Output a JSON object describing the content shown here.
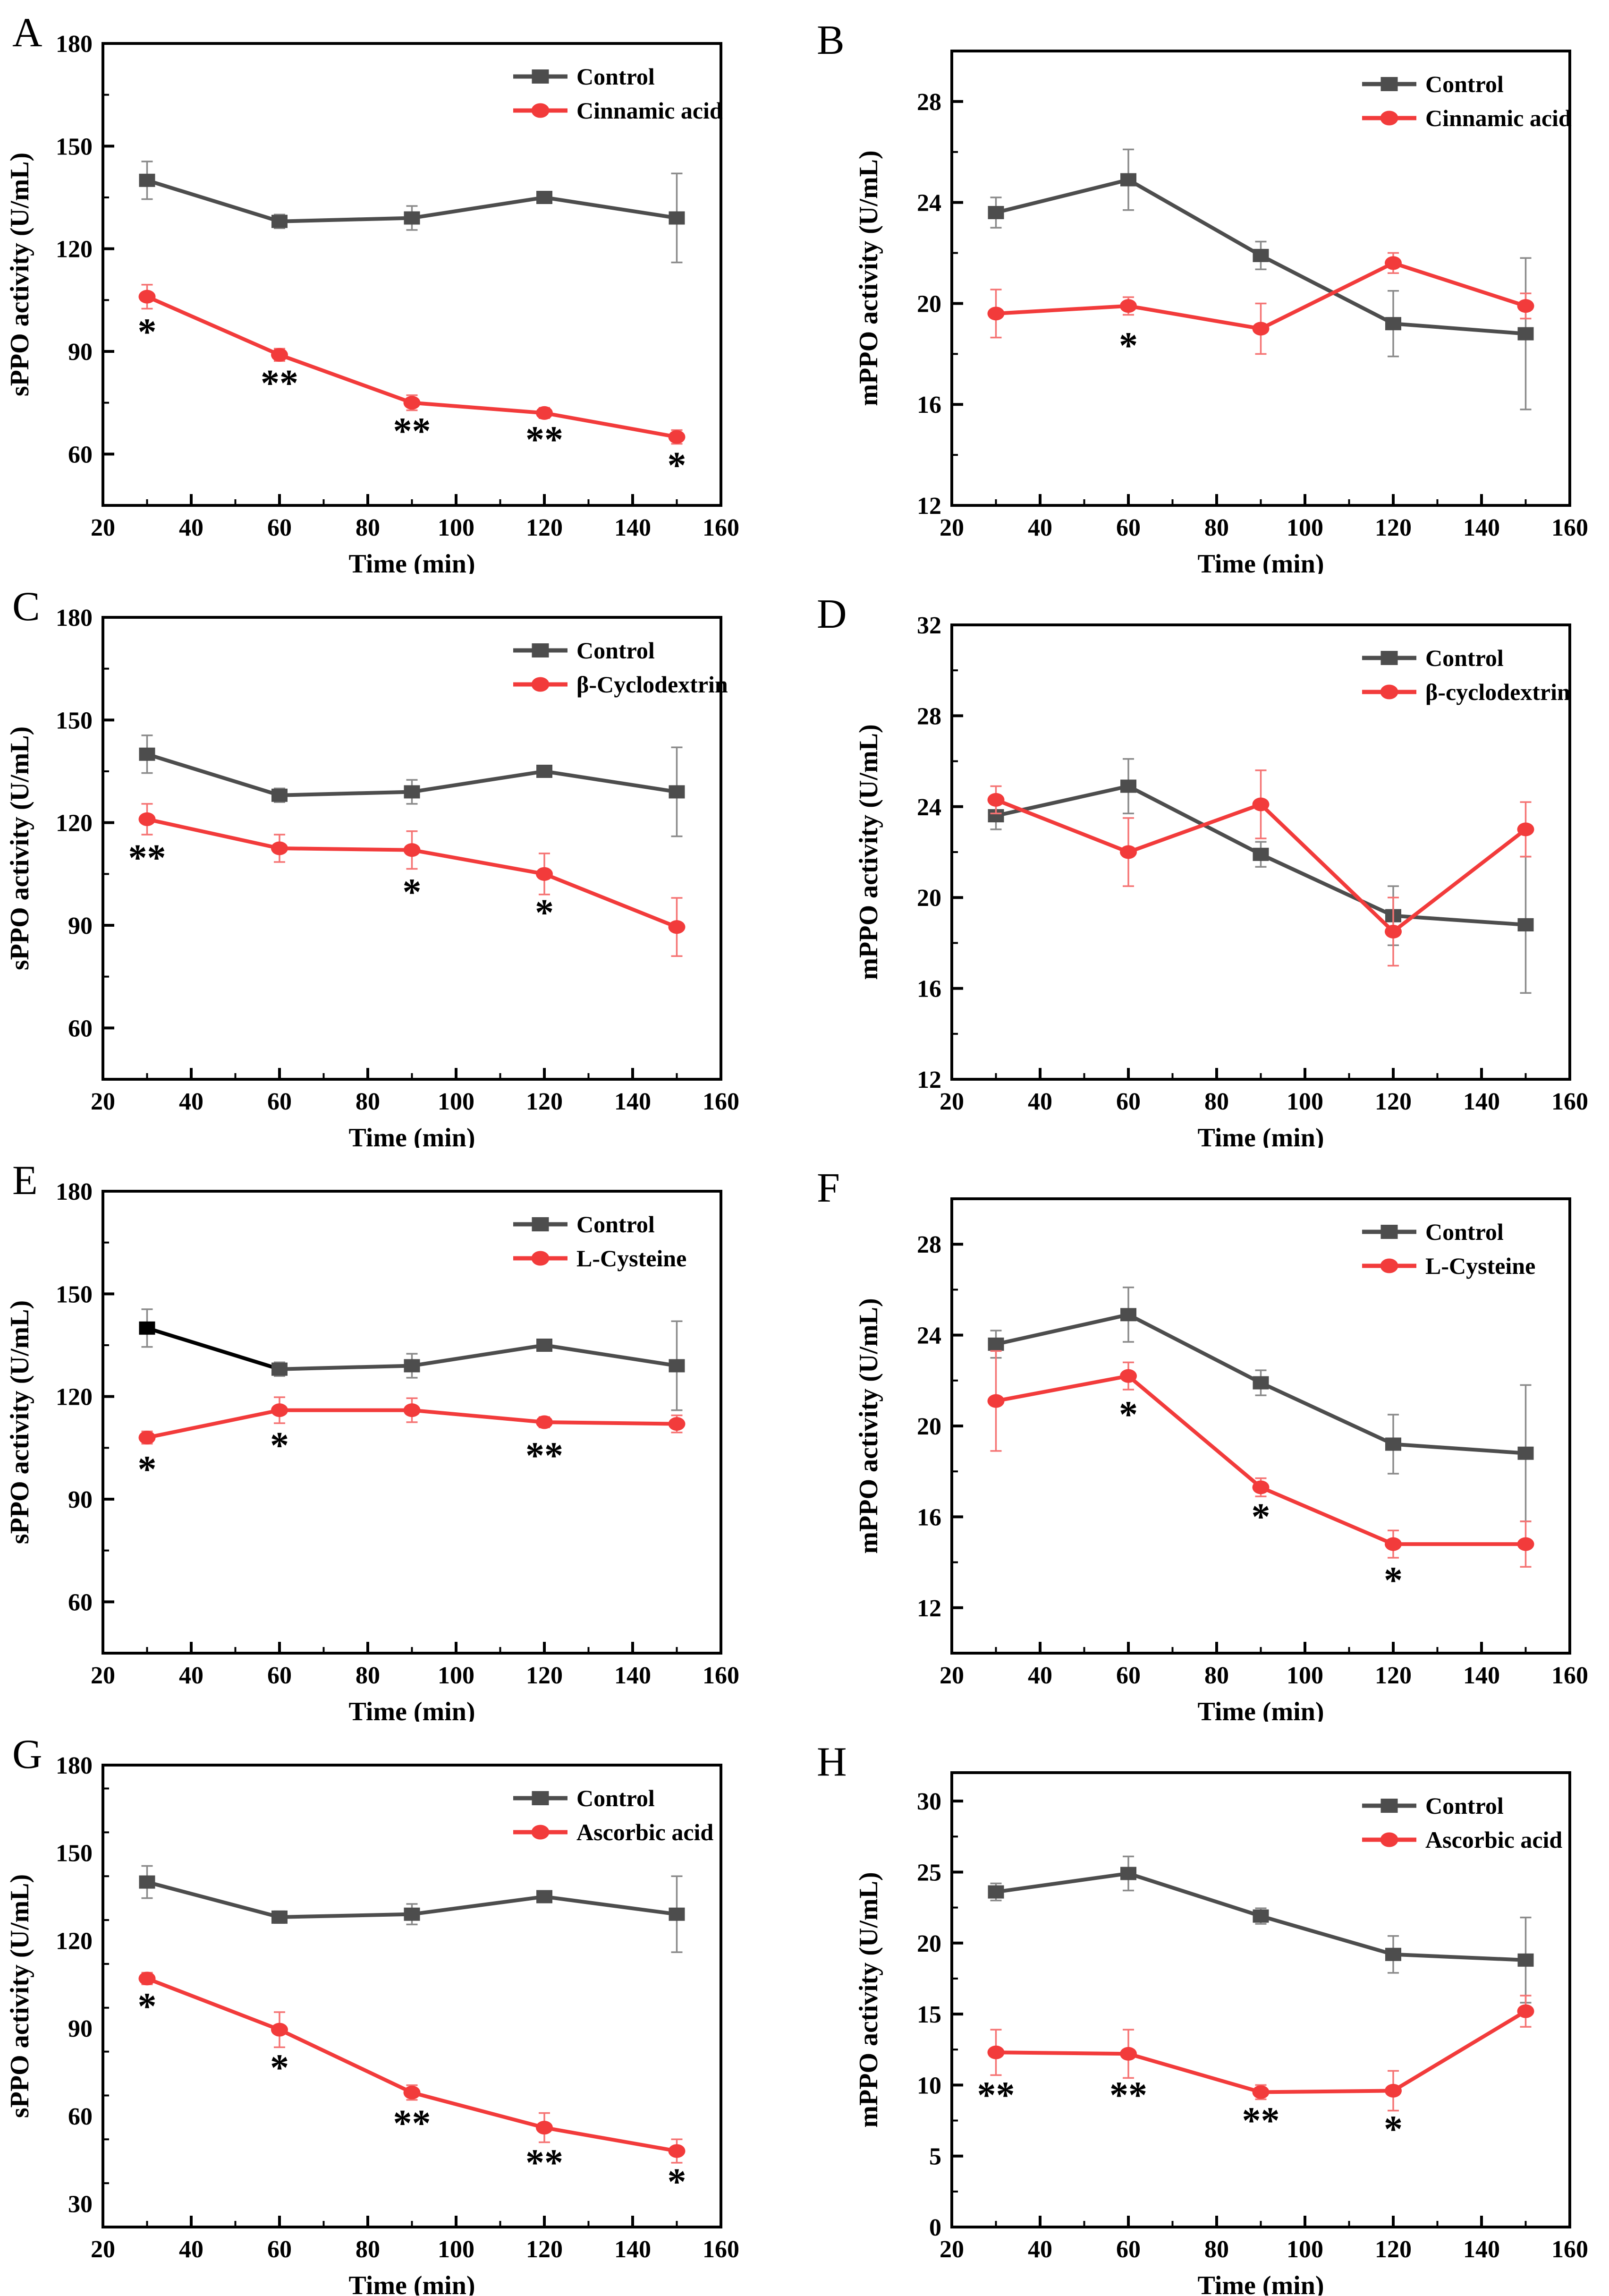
{
  "figure": {
    "background": "#ffffff",
    "text_color": "#000000",
    "accent_red": "#f23b3b",
    "accent_gray": "#4d4d4d",
    "panel_letters": [
      "A",
      "B",
      "C",
      "D",
      "E",
      "F",
      "G",
      "H"
    ]
  },
  "chart_data": [
    {
      "panel": "A",
      "type": "line",
      "title": "",
      "xlabel": "Time (min)",
      "ylabel": "sPPO activity (U/mL)",
      "xlim": [
        20,
        160
      ],
      "xticks": [
        20,
        40,
        60,
        80,
        100,
        120,
        140,
        160
      ],
      "x_minor_step": 10,
      "ylim": [
        45,
        180
      ],
      "yticks": [
        60,
        90,
        120,
        150,
        180
      ],
      "y_minor_step": 15,
      "x": [
        30,
        60,
        90,
        120,
        150
      ],
      "legend_position": "top-right",
      "series": [
        {
          "name": "Control",
          "marker": "square",
          "color": "#4d4d4d",
          "error_color": "#8a8a8a",
          "values": [
            140,
            128,
            129,
            135,
            129
          ],
          "errors": [
            5.5,
            2,
            3.5,
            1.5,
            13
          ]
        },
        {
          "name": "Cinnamic acid",
          "marker": "circle",
          "color": "#f23b3b",
          "error_color": "#f57373",
          "values": [
            106,
            89,
            75,
            72,
            65
          ],
          "errors": [
            3.5,
            1.8,
            2.2,
            1.5,
            2
          ]
        }
      ],
      "significance": [
        {
          "x": 30,
          "y": 97,
          "label": "*"
        },
        {
          "x": 60,
          "y": 82,
          "label": "**"
        },
        {
          "x": 90,
          "y": 68,
          "label": "**"
        },
        {
          "x": 120,
          "y": 65.5,
          "label": "**"
        },
        {
          "x": 150,
          "y": 58,
          "label": "*"
        }
      ]
    },
    {
      "panel": "B",
      "type": "line",
      "title": "",
      "xlabel": "Time (min)",
      "ylabel": "mPPO activity (U/mL)",
      "xlim": [
        20,
        160
      ],
      "xticks": [
        20,
        40,
        60,
        80,
        100,
        120,
        140,
        160
      ],
      "x_minor_step": 10,
      "ylim": [
        12,
        30
      ],
      "yticks": [
        12,
        16,
        20,
        24,
        28
      ],
      "y_minor_step": 2,
      "x": [
        30,
        60,
        90,
        120,
        150
      ],
      "legend_position": "top-right",
      "series": [
        {
          "name": "Control",
          "marker": "square",
          "color": "#4d4d4d",
          "error_color": "#8a8a8a",
          "values": [
            23.6,
            24.9,
            21.9,
            19.2,
            18.8
          ],
          "errors": [
            0.6,
            1.2,
            0.55,
            1.3,
            3
          ]
        },
        {
          "name": "Cinnamic acid",
          "marker": "circle",
          "color": "#f23b3b",
          "error_color": "#f57373",
          "values": [
            19.6,
            19.9,
            19.0,
            21.6,
            19.9
          ],
          "errors": [
            0.95,
            0.35,
            1.0,
            0.4,
            0.5
          ]
        }
      ],
      "significance": [
        {
          "x": 60,
          "y": 18.5,
          "label": "*"
        }
      ]
    },
    {
      "panel": "C",
      "type": "line",
      "title": "",
      "xlabel": "Time (min)",
      "ylabel": "sPPO activity (U/mL)",
      "xlim": [
        20,
        160
      ],
      "xticks": [
        20,
        40,
        60,
        80,
        100,
        120,
        140,
        160
      ],
      "x_minor_step": 10,
      "ylim": [
        45,
        180
      ],
      "yticks": [
        60,
        90,
        120,
        150,
        180
      ],
      "y_minor_step": 15,
      "x": [
        30,
        60,
        90,
        120,
        150
      ],
      "legend_position": "top-right",
      "series": [
        {
          "name": "Control",
          "marker": "square",
          "color": "#4d4d4d",
          "error_color": "#8a8a8a",
          "values": [
            140,
            128,
            129,
            135,
            129
          ],
          "errors": [
            5.5,
            2,
            3.5,
            1.5,
            13
          ]
        },
        {
          "name": "β-Cyclodextrin",
          "marker": "circle",
          "color": "#f23b3b",
          "error_color": "#f57373",
          "values": [
            121,
            112.5,
            112,
            105,
            89.5
          ],
          "errors": [
            4.5,
            4,
            5.5,
            6,
            8.5
          ]
        }
      ],
      "significance": [
        {
          "x": 30,
          "y": 111,
          "label": "**"
        },
        {
          "x": 90,
          "y": 101,
          "label": "*"
        },
        {
          "x": 120,
          "y": 95,
          "label": "*"
        }
      ]
    },
    {
      "panel": "D",
      "type": "line",
      "title": "",
      "xlabel": "Time (min)",
      "ylabel": "mPPO activity (U/mL)",
      "xlim": [
        20,
        160
      ],
      "xticks": [
        20,
        40,
        60,
        80,
        100,
        120,
        140,
        160
      ],
      "x_minor_step": 10,
      "ylim": [
        12,
        32
      ],
      "yticks": [
        12,
        16,
        20,
        24,
        28,
        32
      ],
      "y_minor_step": 2,
      "x": [
        30,
        60,
        90,
        120,
        150
      ],
      "legend_position": "top-right",
      "series": [
        {
          "name": "Control",
          "marker": "square",
          "color": "#4d4d4d",
          "error_color": "#8a8a8a",
          "values": [
            23.6,
            24.9,
            21.9,
            19.2,
            18.8
          ],
          "errors": [
            0.6,
            1.2,
            0.55,
            1.3,
            3
          ]
        },
        {
          "name": "β-cyclodextrin",
          "marker": "circle",
          "color": "#f23b3b",
          "error_color": "#f57373",
          "values": [
            24.3,
            22.0,
            24.1,
            18.5,
            23.0
          ],
          "errors": [
            0.6,
            1.5,
            1.5,
            1.5,
            1.2
          ]
        }
      ],
      "significance": []
    },
    {
      "panel": "E",
      "type": "line",
      "title": "",
      "xlabel": "Time (min)",
      "ylabel": "sPPO activity (U/mL)",
      "xlim": [
        20,
        160
      ],
      "xticks": [
        20,
        40,
        60,
        80,
        100,
        120,
        140,
        160
      ],
      "x_minor_step": 10,
      "ylim": [
        45,
        180
      ],
      "yticks": [
        60,
        90,
        120,
        150,
        180
      ],
      "y_minor_step": 15,
      "x": [
        30,
        60,
        90,
        120,
        150
      ],
      "legend_position": "top-right",
      "series": [
        {
          "name": "Control",
          "marker": "square",
          "color": "#4d4d4d",
          "error_color": "#8a8a8a",
          "first_segment_color": "#000000",
          "first_marker_color": "#000000",
          "values": [
            140,
            128,
            129,
            135,
            129
          ],
          "errors": [
            5.5,
            2,
            3.5,
            1.5,
            13
          ]
        },
        {
          "name": "L-Cysteine",
          "marker": "circle",
          "color": "#f23b3b",
          "error_color": "#f57373",
          "values": [
            108,
            116,
            116,
            112.5,
            112
          ],
          "errors": [
            1.8,
            3.8,
            3.5,
            1.5,
            2.5
          ]
        }
      ],
      "significance": [
        {
          "x": 30,
          "y": 100,
          "label": "*"
        },
        {
          "x": 60,
          "y": 107,
          "label": "*"
        },
        {
          "x": 120,
          "y": 104,
          "label": "**"
        }
      ]
    },
    {
      "panel": "F",
      "type": "line",
      "title": "",
      "xlabel": "Time (min)",
      "ylabel": "mPPO activity (U/mL)",
      "xlim": [
        20,
        160
      ],
      "xticks": [
        20,
        40,
        60,
        80,
        100,
        120,
        140,
        160
      ],
      "x_minor_step": 10,
      "ylim": [
        10,
        30
      ],
      "yticks": [
        12,
        16,
        20,
        24,
        28
      ],
      "y_minor_step": 2,
      "x": [
        30,
        60,
        90,
        120,
        150
      ],
      "legend_position": "top-right",
      "series": [
        {
          "name": "Control",
          "marker": "square",
          "color": "#4d4d4d",
          "error_color": "#8a8a8a",
          "values": [
            23.6,
            24.9,
            21.9,
            19.2,
            18.8
          ],
          "errors": [
            0.6,
            1.2,
            0.55,
            1.3,
            3
          ]
        },
        {
          "name": "L-Cysteine",
          "marker": "circle",
          "color": "#f23b3b",
          "error_color": "#f57373",
          "values": [
            21.1,
            22.2,
            17.3,
            14.8,
            14.8
          ],
          "errors": [
            2.2,
            0.6,
            0.4,
            0.6,
            1.0
          ]
        }
      ],
      "significance": [
        {
          "x": 60,
          "y": 20.7,
          "label": "*"
        },
        {
          "x": 90,
          "y": 16.2,
          "label": "*"
        },
        {
          "x": 120,
          "y": 13.4,
          "label": "*"
        }
      ]
    },
    {
      "panel": "G",
      "type": "line",
      "title": "",
      "xlabel": "Time (min)",
      "ylabel": "sPPO activity (U/mL)",
      "xlim": [
        20,
        160
      ],
      "xticks": [
        20,
        40,
        60,
        80,
        100,
        120,
        140,
        160
      ],
      "x_minor_step": 10,
      "ylim": [
        22,
        180
      ],
      "yticks": [
        30,
        60,
        90,
        120,
        150,
        180
      ],
      "y_minor_step": 15,
      "x": [
        30,
        60,
        90,
        120,
        150
      ],
      "legend_position": "top-right",
      "series": [
        {
          "name": "Control",
          "marker": "square",
          "color": "#4d4d4d",
          "error_color": "#8a8a8a",
          "values": [
            140,
            128,
            129,
            135,
            129
          ],
          "errors": [
            5.5,
            2,
            3.5,
            1.5,
            13
          ]
        },
        {
          "name": "Ascorbic acid",
          "marker": "circle",
          "color": "#f23b3b",
          "error_color": "#f57373",
          "values": [
            107,
            89.5,
            68,
            56,
            48
          ],
          "errors": [
            2,
            6,
            2.5,
            5,
            4
          ]
        }
      ],
      "significance": [
        {
          "x": 30,
          "y": 99,
          "label": "*"
        },
        {
          "x": 60,
          "y": 78,
          "label": "*"
        },
        {
          "x": 90,
          "y": 59,
          "label": "**"
        },
        {
          "x": 120,
          "y": 45.5,
          "label": "**"
        },
        {
          "x": 150,
          "y": 39,
          "label": "*"
        }
      ]
    },
    {
      "panel": "H",
      "type": "line",
      "title": "",
      "xlabel": "Time (min)",
      "ylabel": "mPPO activity (U/mL)",
      "xlim": [
        20,
        160
      ],
      "xticks": [
        20,
        40,
        60,
        80,
        100,
        120,
        140,
        160
      ],
      "x_minor_step": 10,
      "ylim": [
        0,
        32
      ],
      "yticks": [
        0,
        5,
        10,
        15,
        20,
        25,
        30
      ],
      "y_minor_step": 2.5,
      "x": [
        30,
        60,
        90,
        120,
        150
      ],
      "legend_position": "top-right",
      "series": [
        {
          "name": "Control",
          "marker": "square",
          "color": "#4d4d4d",
          "error_color": "#8a8a8a",
          "values": [
            23.6,
            24.9,
            21.9,
            19.2,
            18.8
          ],
          "errors": [
            0.6,
            1.2,
            0.55,
            1.3,
            3
          ]
        },
        {
          "name": "Ascorbic acid",
          "marker": "circle",
          "color": "#f23b3b",
          "error_color": "#f57373",
          "values": [
            12.3,
            12.2,
            9.5,
            9.6,
            15.2
          ],
          "errors": [
            1.6,
            1.7,
            0.5,
            1.4,
            1.1
          ]
        }
      ],
      "significance": [
        {
          "x": 30,
          "y": 9.6,
          "label": "**"
        },
        {
          "x": 60,
          "y": 9.6,
          "label": "**"
        },
        {
          "x": 90,
          "y": 7.8,
          "label": "**"
        },
        {
          "x": 120,
          "y": 7.2,
          "label": "*"
        }
      ]
    }
  ]
}
